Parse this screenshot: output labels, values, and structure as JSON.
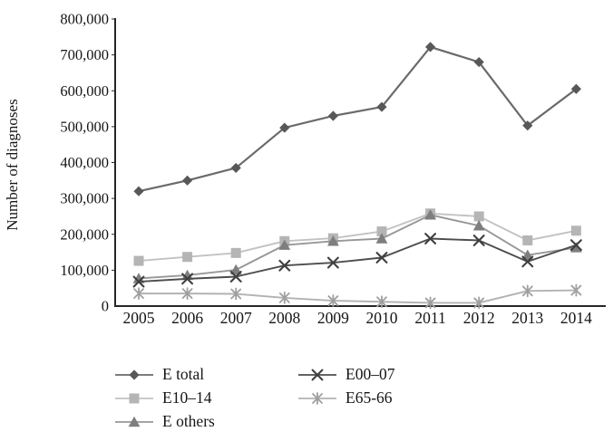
{
  "chart_data": {
    "type": "line",
    "title": "",
    "xlabel": "",
    "ylabel": "Number of diagnoses",
    "ylim": [
      0,
      800000
    ],
    "ytick_step": 100000,
    "grid": false,
    "legend_position": "bottom",
    "x_labels": [
      "2005",
      "2006",
      "2007",
      "2008",
      "2009",
      "2010",
      "2011",
      "2012",
      "2013",
      "2014"
    ],
    "series": [
      {
        "name": "E total",
        "marker": "diamond",
        "line_color": "#6a6a6a",
        "marker_color": "#585858",
        "values": [
          320000,
          350000,
          385000,
          497000,
          530000,
          555000,
          722000,
          680000,
          503000,
          605000
        ]
      },
      {
        "name": "E10–14",
        "marker": "square",
        "line_color": "#c2c2c2",
        "marker_color": "#b5b5b5",
        "values": [
          126000,
          137000,
          148000,
          181000,
          189000,
          208000,
          258000,
          250000,
          183000,
          210000
        ]
      },
      {
        "name": "E others",
        "marker": "triangle",
        "line_color": "#979797",
        "marker_color": "#7e7e7e",
        "values": [
          77000,
          86000,
          101000,
          170000,
          181000,
          188000,
          254000,
          224000,
          142000,
          163000
        ]
      },
      {
        "name": "E00–07",
        "marker": "x",
        "line_color": "#4d4d4d",
        "marker_color": "#3f3f3f",
        "values": [
          68000,
          76000,
          82000,
          113000,
          121000,
          135000,
          188000,
          183000,
          124000,
          170000
        ]
      },
      {
        "name": "E65-66",
        "marker": "asterisk",
        "line_color": "#b2b2b2",
        "marker_color": "#9f9f9f",
        "values": [
          35000,
          35000,
          34000,
          23000,
          15000,
          12000,
          9000,
          9000,
          42000,
          44000
        ]
      }
    ],
    "legend_columns": [
      [
        0,
        1,
        2
      ],
      [
        3,
        4
      ]
    ],
    "axis_color": "#262626",
    "text_color": "#161616"
  }
}
